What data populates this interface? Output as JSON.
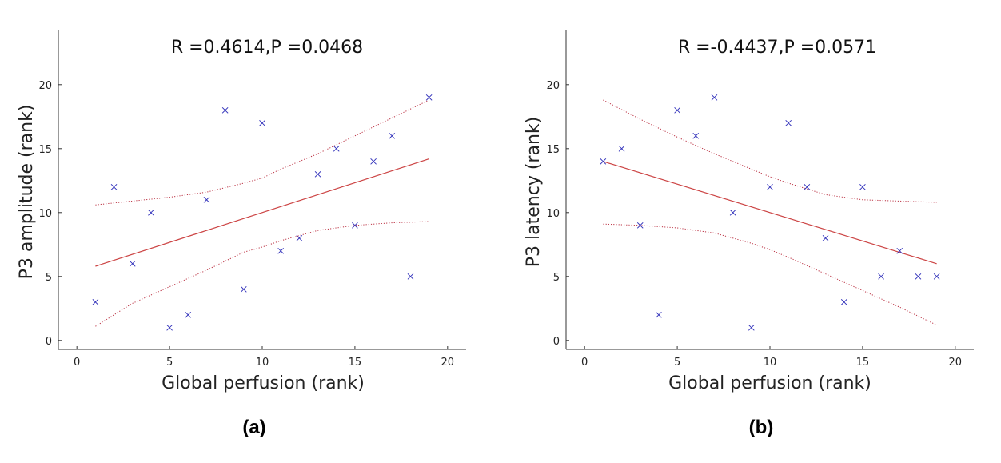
{
  "chart_data": [
    {
      "type": "scatter",
      "panel_label": "(a)",
      "title": "R =0.4614,P =0.0468",
      "xlabel": "Global perfusion (rank)",
      "ylabel": "P3 amplitude (rank)",
      "xlim": [
        -1,
        21
      ],
      "ylim": [
        -0.7,
        24.3
      ],
      "xticks": [
        0,
        5,
        10,
        15,
        20
      ],
      "yticks": [
        0,
        5,
        10,
        15,
        20
      ],
      "series": [
        {
          "name": "observations",
          "marker": "x",
          "color": "#3333bb",
          "points": [
            [
              1,
              3
            ],
            [
              2,
              12
            ],
            [
              3,
              6
            ],
            [
              4,
              10
            ],
            [
              5,
              1
            ],
            [
              6,
              2
            ],
            [
              7,
              11
            ],
            [
              8,
              18
            ],
            [
              9,
              4
            ],
            [
              10,
              17
            ],
            [
              11,
              7
            ],
            [
              12,
              8
            ],
            [
              13,
              13
            ],
            [
              14,
              15
            ],
            [
              15,
              9
            ],
            [
              16,
              14
            ],
            [
              17,
              16
            ],
            [
              18,
              5
            ],
            [
              19,
              19
            ]
          ]
        }
      ],
      "fit_line": {
        "color": "#cc4444",
        "x": [
          1,
          19
        ],
        "y": [
          5.8,
          14.2
        ]
      },
      "confidence_band": {
        "color": "#bb3344",
        "x": [
          1,
          3,
          5,
          7,
          9,
          10,
          11,
          13,
          15,
          17,
          19
        ],
        "upper": [
          10.6,
          10.9,
          11.2,
          11.6,
          12.3,
          12.7,
          13.4,
          14.6,
          16.0,
          17.4,
          18.8
        ],
        "lower": [
          1.1,
          2.9,
          4.2,
          5.5,
          6.9,
          7.3,
          7.8,
          8.6,
          9.0,
          9.2,
          9.3
        ]
      }
    },
    {
      "type": "scatter",
      "panel_label": "(b)",
      "title": "R =-0.4437,P =0.0571",
      "xlabel": "Global perfusion (rank)",
      "ylabel": "P3 latency (rank)",
      "xlim": [
        -1,
        21
      ],
      "ylim": [
        -0.7,
        24.3
      ],
      "xticks": [
        0,
        5,
        10,
        15,
        20
      ],
      "yticks": [
        0,
        5,
        10,
        15,
        20
      ],
      "series": [
        {
          "name": "observations",
          "marker": "x",
          "color": "#3333bb",
          "points": [
            [
              1,
              14
            ],
            [
              2,
              15
            ],
            [
              3,
              9
            ],
            [
              4,
              2
            ],
            [
              5,
              18
            ],
            [
              6,
              16
            ],
            [
              7,
              19
            ],
            [
              8,
              10
            ],
            [
              9,
              1
            ],
            [
              10,
              12
            ],
            [
              11,
              17
            ],
            [
              12,
              12
            ],
            [
              13,
              8
            ],
            [
              14,
              3
            ],
            [
              15,
              12
            ],
            [
              16,
              5
            ],
            [
              17,
              7
            ],
            [
              18,
              5
            ],
            [
              19,
              5
            ]
          ]
        }
      ],
      "fit_line": {
        "color": "#cc4444",
        "x": [
          1,
          19
        ],
        "y": [
          14.0,
          6.0
        ]
      },
      "confidence_band": {
        "color": "#bb3344",
        "x": [
          1,
          3,
          5,
          7,
          9,
          10,
          11,
          13,
          15,
          17,
          19
        ],
        "upper": [
          18.8,
          17.3,
          15.9,
          14.6,
          13.4,
          12.8,
          12.3,
          11.4,
          11.0,
          10.9,
          10.8
        ],
        "lower": [
          9.1,
          9.0,
          8.8,
          8.4,
          7.6,
          7.1,
          6.5,
          5.2,
          3.9,
          2.6,
          1.2
        ]
      }
    }
  ]
}
